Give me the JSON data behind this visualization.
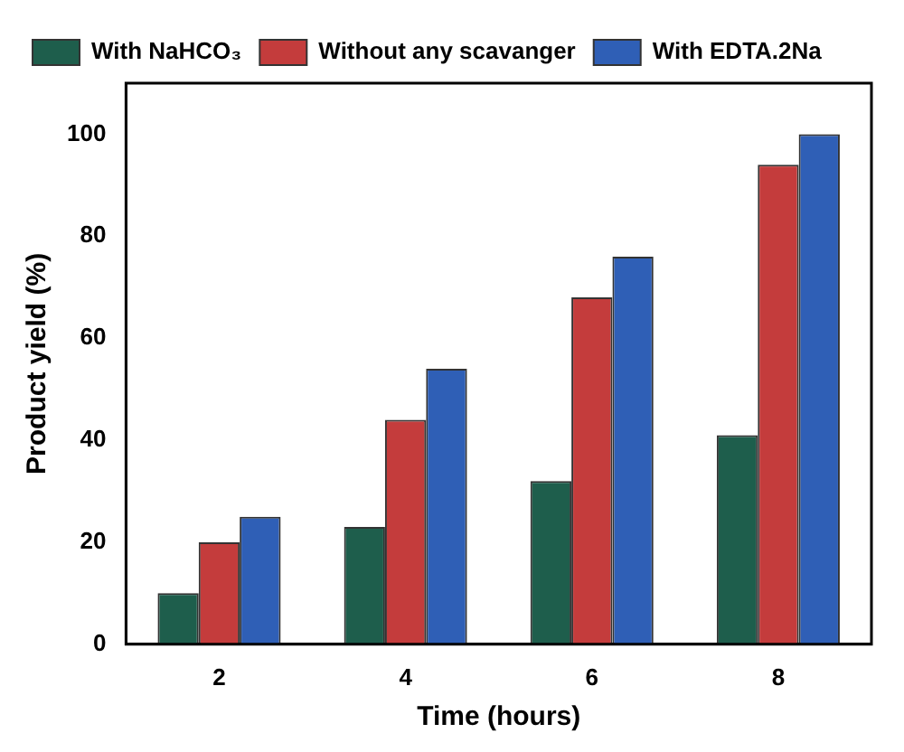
{
  "chart_data": {
    "type": "bar",
    "xlabel": "Time (hours)",
    "ylabel": "Product yield (%)",
    "categories": [
      "2",
      "4",
      "6",
      "8"
    ],
    "series": [
      {
        "name": "With NaHCO₃",
        "color": "#1e5e4c",
        "values": [
          10,
          23,
          32,
          41
        ]
      },
      {
        "name": "Without any scavanger",
        "color": "#c43c3c",
        "values": [
          20,
          44,
          68,
          94
        ]
      },
      {
        "name": "With EDTA.2Na",
        "color": "#2f5fb6",
        "values": [
          25,
          54,
          76,
          100
        ]
      }
    ],
    "ylim": [
      0,
      110
    ],
    "yticks": [
      0,
      20,
      40,
      60,
      80,
      100
    ],
    "grid": false,
    "legend": "top left"
  }
}
